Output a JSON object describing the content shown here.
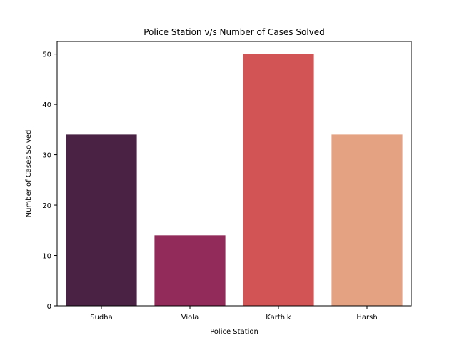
{
  "chart_data": {
    "type": "bar",
    "title": "Police Station v/s Number of Cases Solved",
    "xlabel": "Police Station",
    "ylabel": "Number of Cases Solved",
    "categories": [
      "Sudha",
      "Viola",
      "Karthik",
      "Harsh"
    ],
    "values": [
      34,
      14,
      50,
      34
    ],
    "colors": [
      "#4a2344",
      "#922a5a",
      "#d35454",
      "#e4a283"
    ],
    "ylim": [
      0,
      52.5
    ],
    "yticks": [
      0,
      10,
      20,
      30,
      40,
      50
    ],
    "grid": false,
    "legend": "none"
  }
}
